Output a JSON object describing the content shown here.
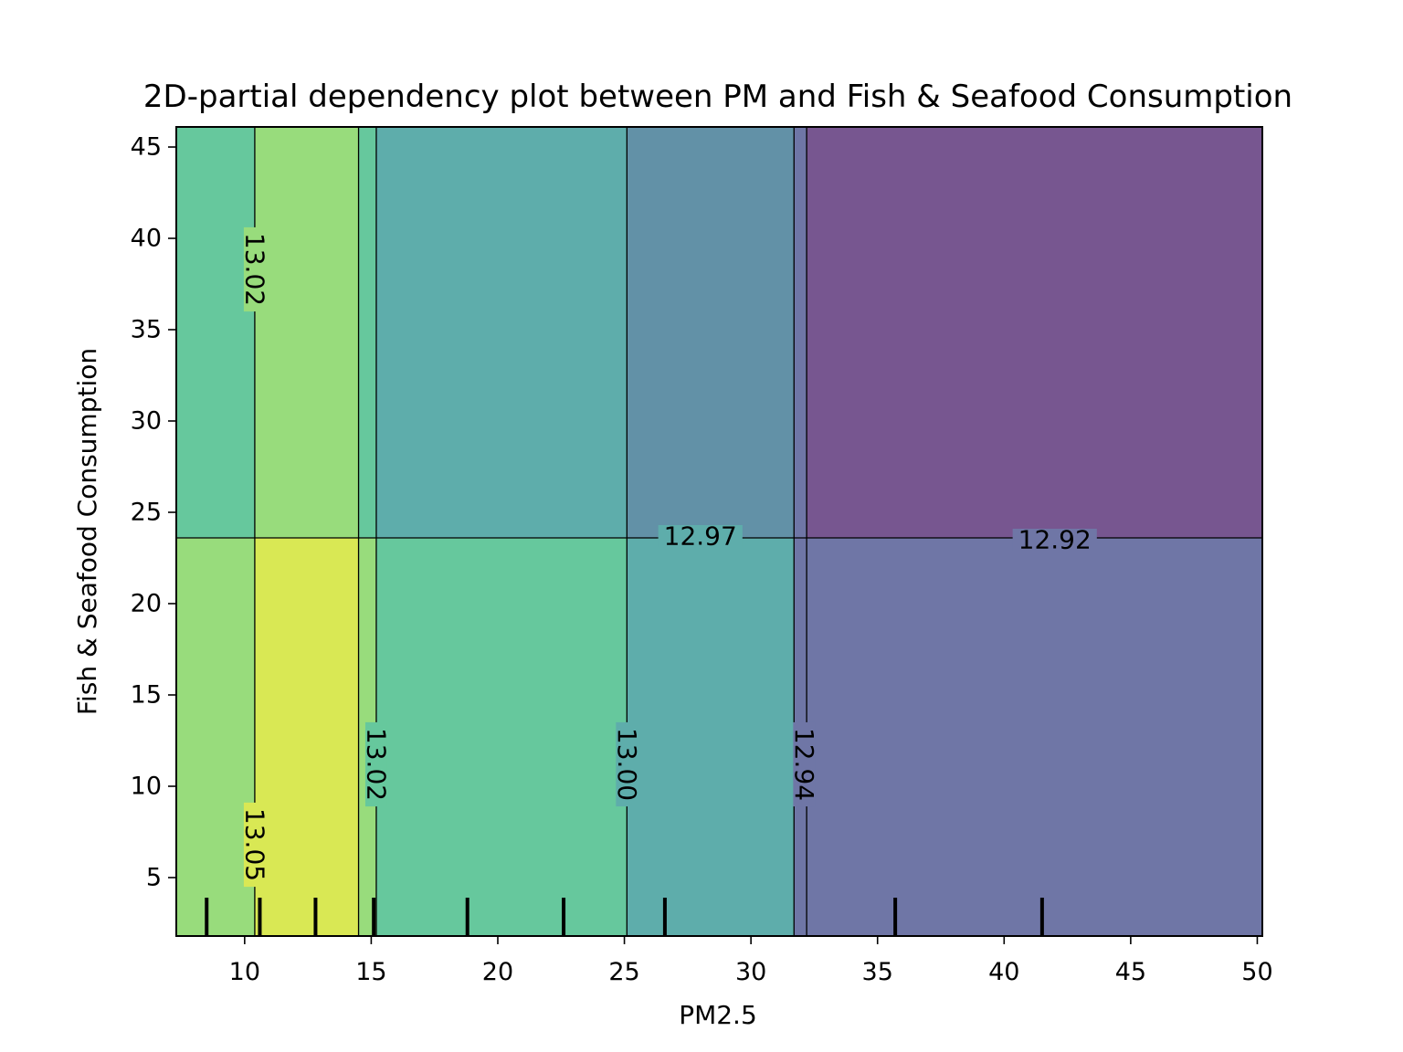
{
  "chart_data": {
    "type": "heatmap",
    "title": "2D-partial dependency plot between PM and Fish & Seafood Consumption",
    "xlabel": "PM2.5",
    "ylabel": "Fish & Seafood Consumption",
    "xlim": [
      7.3,
      50.2
    ],
    "ylim": [
      1.8,
      46.1
    ],
    "x_ticks": [
      10,
      15,
      20,
      25,
      30,
      35,
      40,
      45,
      50
    ],
    "y_ticks": [
      5,
      10,
      15,
      20,
      25,
      30,
      35,
      40,
      45
    ],
    "grid": false,
    "legend": "none",
    "x_breaks": [
      7.3,
      10.4,
      14.5,
      15.2,
      25.1,
      31.7,
      32.2,
      50.2
    ],
    "y_break": 23.6,
    "regions": [
      {
        "x0": 7.3,
        "x1": 10.4,
        "y0": 23.6,
        "y1": 46.1,
        "color": "#66c89d"
      },
      {
        "x0": 10.4,
        "x1": 14.5,
        "y0": 23.6,
        "y1": 46.1,
        "color": "#98dc7c"
      },
      {
        "x0": 14.5,
        "x1": 15.2,
        "y0": 23.6,
        "y1": 46.1,
        "color": "#66c89d"
      },
      {
        "x0": 15.2,
        "x1": 25.1,
        "y0": 23.6,
        "y1": 46.1,
        "color": "#5eadab"
      },
      {
        "x0": 25.1,
        "x1": 31.7,
        "y0": 23.6,
        "y1": 46.1,
        "color": "#6291a7"
      },
      {
        "x0": 31.7,
        "x1": 32.2,
        "y0": 23.6,
        "y1": 46.1,
        "color": "#6f76a6"
      },
      {
        "x0": 32.2,
        "x1": 50.2,
        "y0": 23.6,
        "y1": 46.1,
        "color": "#775690"
      },
      {
        "x0": 7.3,
        "x1": 10.4,
        "y0": 1.8,
        "y1": 23.6,
        "color": "#98dc7c"
      },
      {
        "x0": 10.4,
        "x1": 14.5,
        "y0": 1.8,
        "y1": 23.6,
        "color": "#d9e854"
      },
      {
        "x0": 14.5,
        "x1": 15.2,
        "y0": 1.8,
        "y1": 23.6,
        "color": "#98dc7c"
      },
      {
        "x0": 15.2,
        "x1": 25.1,
        "y0": 1.8,
        "y1": 23.6,
        "color": "#66c89d"
      },
      {
        "x0": 25.1,
        "x1": 31.7,
        "y0": 1.8,
        "y1": 23.6,
        "color": "#5eadab"
      },
      {
        "x0": 31.7,
        "x1": 32.2,
        "y0": 1.8,
        "y1": 23.6,
        "color": "#6f76a6"
      },
      {
        "x0": 32.2,
        "x1": 50.2,
        "y0": 1.8,
        "y1": 23.6,
        "color": "#6f76a6"
      }
    ],
    "contour_labels": [
      {
        "text": "13.02",
        "x": 10.4,
        "y": 38.3,
        "rotation": 90
      },
      {
        "text": "13.05",
        "x": 10.4,
        "y": 6.8,
        "rotation": 90
      },
      {
        "text": "13.02",
        "x": 15.2,
        "y": 11.2,
        "rotation": 90
      },
      {
        "text": "13.00",
        "x": 25.1,
        "y": 11.2,
        "rotation": 90
      },
      {
        "text": "12.94",
        "x": 32.1,
        "y": 11.2,
        "rotation": 90
      },
      {
        "text": "12.97",
        "x": 28.0,
        "y": 23.7,
        "rotation": 0
      },
      {
        "text": "12.92",
        "x": 42.0,
        "y": 23.5,
        "rotation": 0
      }
    ],
    "rug_x": [
      8.5,
      10.6,
      12.8,
      15.1,
      18.8,
      22.6,
      26.6,
      35.7,
      41.5
    ]
  }
}
